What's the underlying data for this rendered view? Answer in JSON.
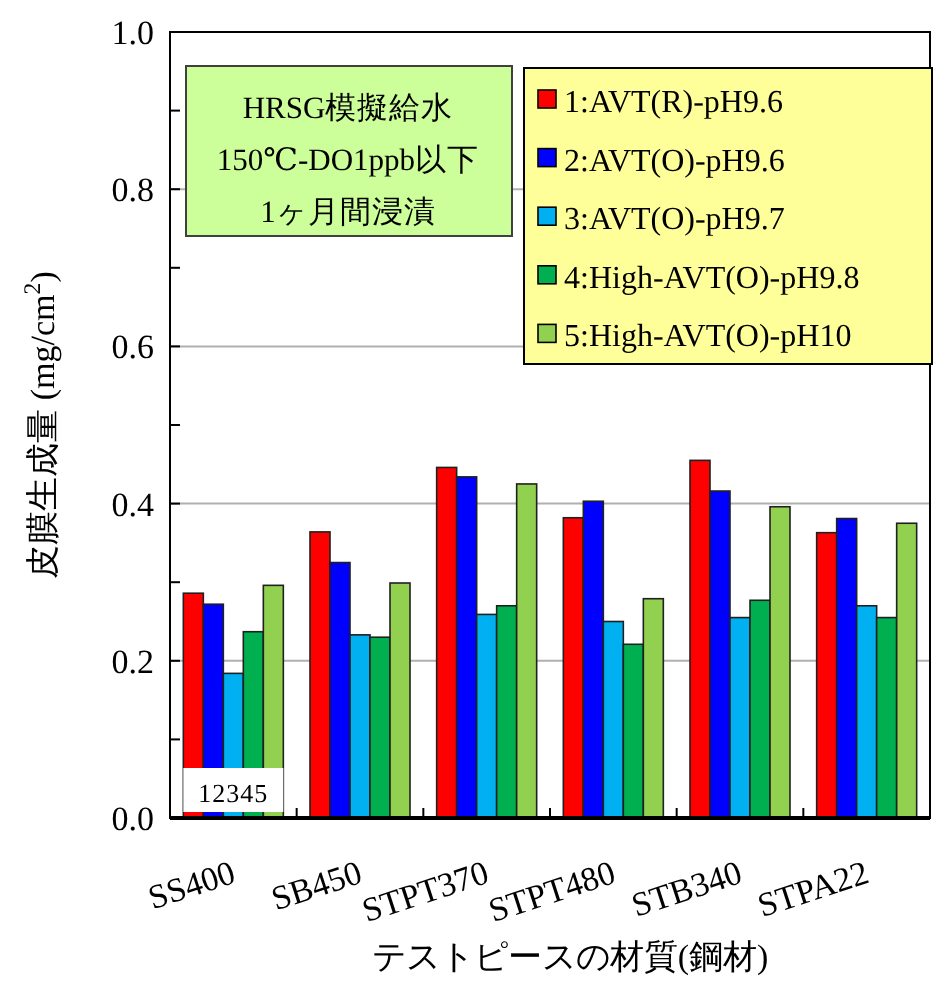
{
  "chart_data": {
    "type": "bar",
    "xlabel": "テストピースの材質(鋼材)",
    "ylabel": "皮膜生成量 (mg/cm$^{2}$)",
    "categories": [
      "SS400",
      "SB450",
      "STPT370",
      "STPT480",
      "STB340",
      "STPA22"
    ],
    "series": [
      {
        "name": "1:AVT(R)-pH9.6",
        "color": "#ff0000",
        "values": [
          0.286,
          0.364,
          0.446,
          0.382,
          0.455,
          0.363
        ]
      },
      {
        "name": "2:AVT(O)-pH9.6",
        "color": "#0000ff",
        "values": [
          0.272,
          0.325,
          0.434,
          0.403,
          0.416,
          0.381
        ]
      },
      {
        "name": "3:AVT(O)-pH9.7",
        "color": "#00b0f0",
        "values": [
          0.184,
          0.233,
          0.259,
          0.25,
          0.255,
          0.27
        ]
      },
      {
        "name": "4:High-AVT(O)-pH9.8",
        "color": "#00b050",
        "values": [
          0.237,
          0.23,
          0.27,
          0.221,
          0.277,
          0.255
        ]
      },
      {
        "name": "5:High-AVT(O)-pH10",
        "color": "#92d050",
        "values": [
          0.296,
          0.299,
          0.425,
          0.279,
          0.396,
          0.375
        ]
      }
    ],
    "ylim": [
      0,
      1
    ],
    "yticks": [
      {
        "value": 0,
        "label": "0.0"
      },
      {
        "value": 0.2,
        "label": "0.2"
      },
      {
        "value": 0.4,
        "label": "0.4"
      },
      {
        "value": 0.6,
        "label": "0.6"
      },
      {
        "value": 0.8,
        "label": "0.8"
      },
      {
        "value": 1,
        "label": "1.0"
      }
    ],
    "grid": "y",
    "legend": "top right",
    "annotations": [
      "HRSG模擬給水",
      "150℃-DO1ppb以下",
      "1ヶ月間浸漬",
      {
        "text": "12345",
        "x": "SS400",
        "y": 0
      }
    ]
  }
}
